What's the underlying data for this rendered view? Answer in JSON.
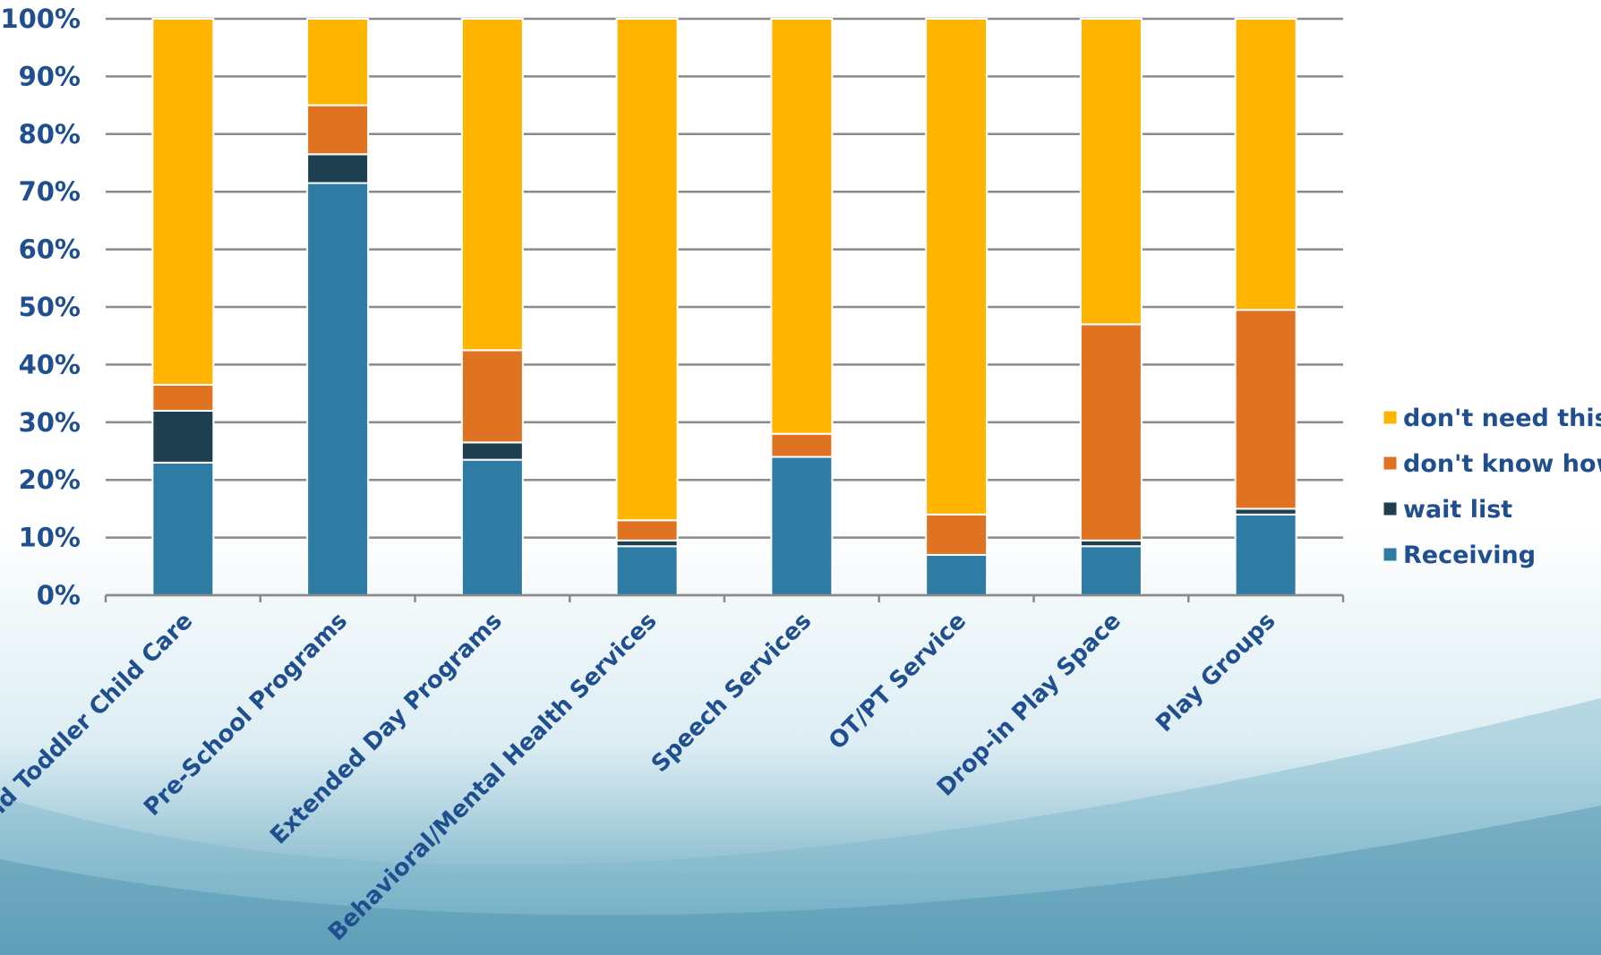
{
  "chart_data": {
    "type": "bar",
    "stacked": true,
    "categories": [
      "Infant and Toddler Child Care",
      "Pre-School Programs",
      "Extended Day Programs",
      "Behavioral/Mental Health Services",
      "Speech Services",
      "OT/PT Service",
      "Drop-in Play Space",
      "Play Groups"
    ],
    "series": [
      {
        "name": "Receiving",
        "color": "#2e7ba3",
        "values": [
          23,
          71.5,
          23.5,
          8.5,
          24,
          7,
          8.5,
          14
        ]
      },
      {
        "name": "wait list",
        "color": "#1d3f4f",
        "values": [
          9,
          5,
          3,
          1,
          0,
          0,
          1,
          1
        ]
      },
      {
        "name": "don't know how",
        "color": "#e07322",
        "values": [
          4.5,
          8.5,
          16,
          3.5,
          4,
          7,
          37.5,
          34.5
        ]
      },
      {
        "name": "don't need this",
        "color": "#ffb400",
        "values": [
          63.5,
          15,
          57.5,
          87,
          72,
          86,
          53,
          50.5
        ]
      }
    ],
    "yticks": [
      "0%",
      "10%",
      "20%",
      "30%",
      "40%",
      "50%",
      "60%",
      "70%",
      "80%",
      "90%",
      "100%"
    ],
    "ylim": [
      0,
      100
    ],
    "grid": true,
    "legend": "right",
    "legend_order": [
      "don't need this",
      "don't know how",
      "wait list",
      "Receiving"
    ]
  }
}
